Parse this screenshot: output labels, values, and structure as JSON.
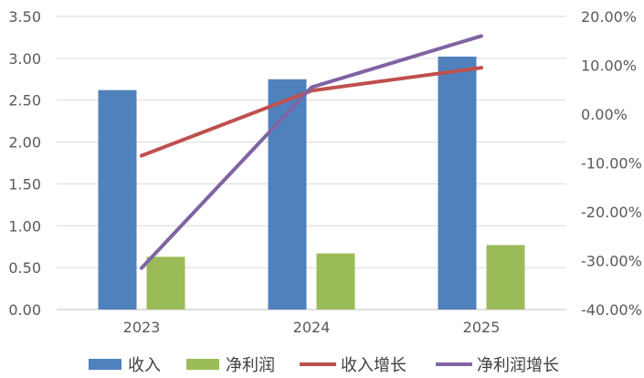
{
  "chart_data": {
    "type": "bar",
    "categories": [
      "2023",
      "2024",
      "2025"
    ],
    "series": [
      {
        "name": "收入",
        "kind": "bar",
        "axis": "left",
        "color": "#4F81BD",
        "values": [
          2.62,
          2.75,
          3.02
        ]
      },
      {
        "name": "净利润",
        "kind": "bar",
        "axis": "left",
        "color": "#9BBB59",
        "values": [
          0.63,
          0.67,
          0.77
        ]
      },
      {
        "name": "收入增长",
        "kind": "line",
        "axis": "right",
        "color": "#C0504D",
        "values": [
          -8.5,
          4.8,
          9.5
        ]
      },
      {
        "name": "净利润增长",
        "kind": "line",
        "axis": "right",
        "color": "#8064A2",
        "values": [
          -31.5,
          5.5,
          16.0
        ]
      }
    ],
    "left_axis": {
      "ylim": [
        0,
        3.5
      ],
      "ticks": [
        "0.00",
        "0.50",
        "1.00",
        "1.50",
        "2.00",
        "2.50",
        "3.00",
        "3.50"
      ]
    },
    "right_axis": {
      "ylim": [
        -40,
        20
      ],
      "ticks": [
        "-40.00%",
        "-30.00%",
        "-20.00%",
        "-10.00%",
        "0.00%",
        "10.00%",
        "20.00%"
      ]
    },
    "grid": true,
    "legend_position": "bottom"
  }
}
